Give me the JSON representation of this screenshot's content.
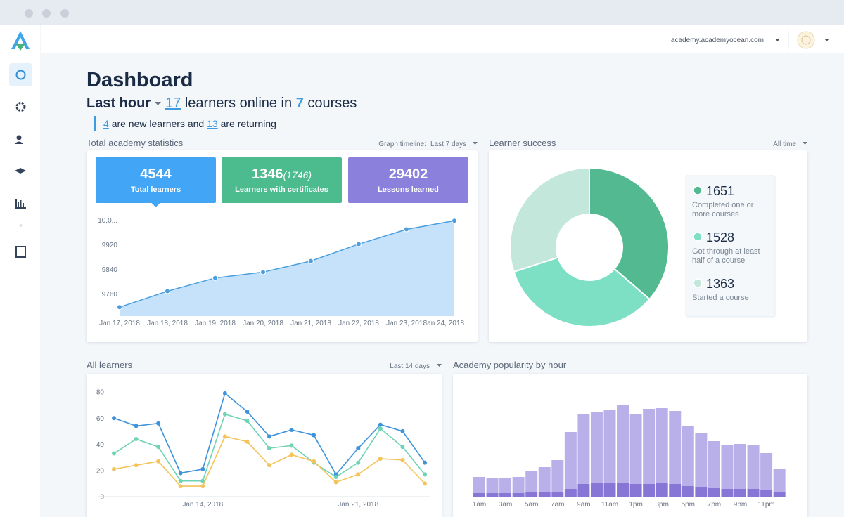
{
  "header": {
    "site": "academy.academyocean.com"
  },
  "dashboard": {
    "title": "Dashboard",
    "period": "Last hour",
    "online_count": 17,
    "online_text": "learners online in",
    "course_count": 7,
    "course_text": "courses",
    "new_count": 4,
    "new_text": "are new learners and",
    "returning_count": 13,
    "returning_text": "are returning"
  },
  "stats": {
    "timeline_label": "Graph timeline:",
    "timeline": "Last 7 days",
    "cards": [
      {
        "value": 4544,
        "label": "Total learners",
        "color": "#42a5f5"
      },
      {
        "value": 1346,
        "extra": "(1746)",
        "label": "Learners with certificates",
        "color": "#4cbb8e"
      },
      {
        "value": 29402,
        "label": "Lessons learned",
        "color": "#8b80db"
      }
    ]
  },
  "success": {
    "filter": "All time"
  },
  "learners": {
    "filter": "Last 14 days"
  },
  "chart_data": [
    {
      "type": "area",
      "title": "Total academy statistics",
      "categories": [
        "Jan 17, 2018",
        "Jan 18, 2018",
        "Jan 19, 2018",
        "Jan 20, 2018",
        "Jan 21, 2018",
        "Jan 22, 2018",
        "Jan 23, 2018",
        "Jan 24, 2018"
      ],
      "values": [
        9717,
        9769,
        9812,
        9831,
        9867,
        9922,
        9970,
        9998
      ],
      "color": "#4a9fe0",
      "area_color": "#c6e2fa",
      "ylim": [
        9688,
        10010
      ],
      "yticks": [
        9760,
        9840,
        9920,
        {
          "value": 10000,
          "label": "10,0..."
        }
      ]
    },
    {
      "type": "pie",
      "title": "Learner success",
      "donut": true,
      "values": [
        1651,
        1528,
        1363
      ],
      "labels": [
        "Completed one or more courses",
        "Got through at least half of a course",
        "Started a course"
      ],
      "colors": [
        "#52b990",
        "#7ddfc3",
        "#c3e8db"
      ]
    },
    {
      "type": "line",
      "title": "All learners",
      "categories": [
        null,
        null,
        null,
        null,
        "Jan 14, 2018",
        null,
        null,
        null,
        null,
        null,
        null,
        "Jan 21, 2018",
        null,
        null,
        null
      ],
      "series": [
        {
          "color": "#3f93db",
          "values": [
            60,
            54,
            56,
            18,
            21,
            79,
            65,
            46,
            51,
            47,
            17,
            37,
            55,
            50,
            26
          ]
        },
        {
          "color": "#6fd3b6",
          "values": [
            33,
            44,
            38,
            12,
            12,
            63,
            58,
            37,
            39,
            26,
            15,
            26,
            52,
            38,
            17
          ]
        },
        {
          "color": "#f4c35a",
          "values": [
            21,
            24,
            27,
            8,
            8,
            46,
            42,
            24,
            32,
            27,
            11,
            17,
            29,
            28,
            10
          ]
        }
      ],
      "ylim": [
        0,
        80
      ],
      "yticks": [
        0,
        20,
        40,
        60,
        80
      ]
    },
    {
      "type": "bar",
      "stacked": true,
      "title": "Academy popularity by hour",
      "categories": [
        "1am",
        null,
        "3am",
        null,
        "5am",
        null,
        "7am",
        null,
        "9am",
        null,
        "11am",
        null,
        "1pm",
        null,
        "3pm",
        null,
        "5pm",
        null,
        "7pm",
        null,
        "9pm",
        null,
        "11pm",
        null
      ],
      "series": [
        {
          "color": "#8776d6",
          "values": [
            5,
            5,
            5,
            5,
            6,
            6,
            7,
            11,
            18,
            19,
            19,
            19,
            18,
            18,
            19,
            18,
            15,
            13,
            12,
            11,
            11,
            11,
            10,
            7
          ]
        },
        {
          "color": "#bab0e9",
          "values": [
            23,
            21,
            21,
            23,
            30,
            36,
            45,
            81,
            99,
            102,
            105,
            111,
            99,
            107,
            107,
            104,
            86,
            77,
            67,
            62,
            64,
            63,
            52,
            32
          ]
        }
      ],
      "ylim": [
        0,
        140
      ]
    }
  ]
}
